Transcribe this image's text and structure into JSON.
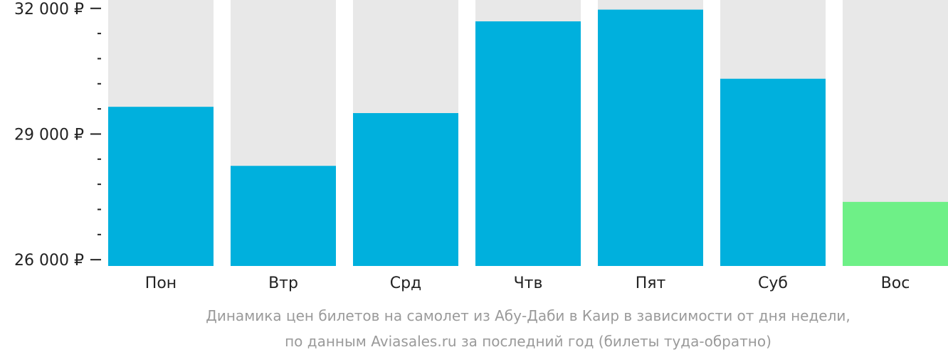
{
  "chart_data": {
    "type": "bar",
    "categories": [
      "Пон",
      "Втр",
      "Срд",
      "Чтв",
      "Пят",
      "Суб",
      "Вос"
    ],
    "values": [
      29650,
      28240,
      29500,
      31690,
      31970,
      30320,
      27380
    ],
    "ylim": [
      25850,
      32200
    ],
    "yticks": [
      {
        "value": 26000,
        "label": "26 000 ₽"
      },
      {
        "value": 29000,
        "label": "29 000 ₽"
      },
      {
        "value": 32000,
        "label": "32 000 ₽"
      }
    ],
    "minor_tick_step": 600,
    "highlight_index": 6,
    "colors": {
      "bar": "#00b0dd",
      "highlight": "#6ef087",
      "background_column": "#e8e8e8",
      "axis": "#222222"
    }
  },
  "caption": {
    "line1": "Динамика цен билетов на самолет из Абу-Даби в Каир в зависимости от дня недели,",
    "line2": "по данным Aviasales.ru за последний год (билеты туда-обратно)"
  }
}
